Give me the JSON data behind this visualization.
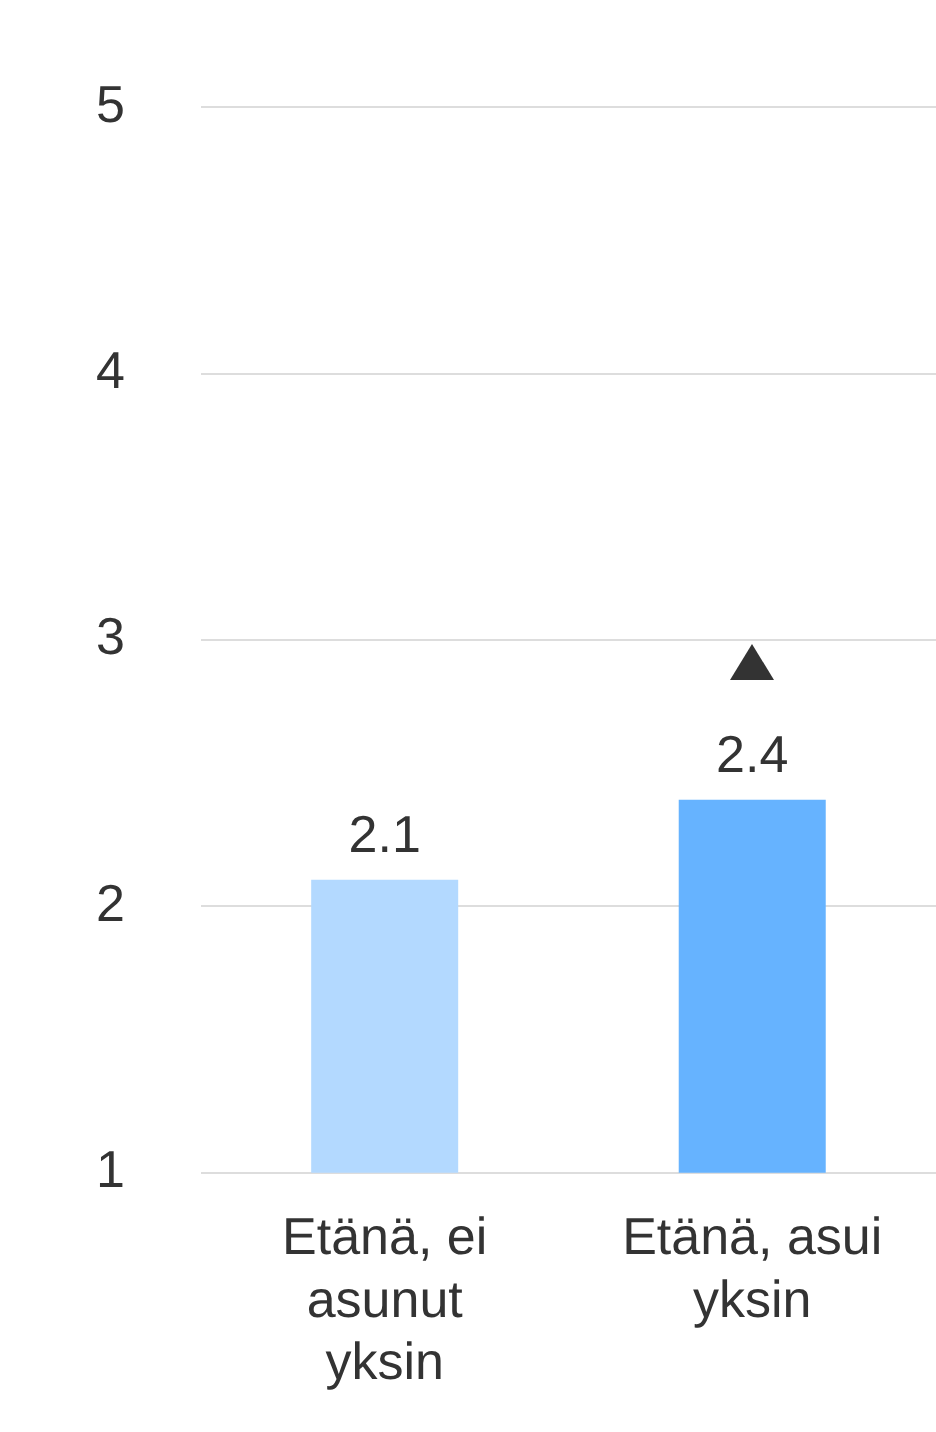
{
  "chart_data": {
    "type": "bar",
    "categories": [
      "Etänä, ei asunut yksin",
      "Etänä, asui yksin"
    ],
    "values": [
      2.1,
      2.4
    ],
    "colors": [
      "#b3d9ff",
      "#66b3ff"
    ],
    "ylim": [
      1,
      5
    ],
    "yticks": [
      1,
      2,
      3,
      4,
      5
    ],
    "grid": "y",
    "data_labels": true,
    "legend": false
  }
}
